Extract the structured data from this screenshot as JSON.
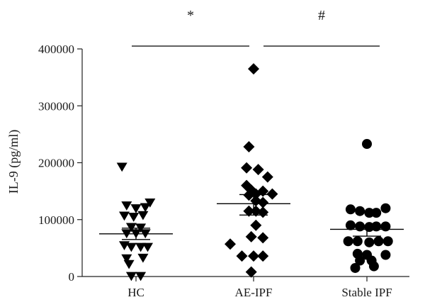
{
  "chart_data": {
    "type": "scatter",
    "ylabel": "IL-9 (pg/ml)",
    "ylim": [
      0,
      400000
    ],
    "yticks": [
      0,
      100000,
      200000,
      300000,
      400000
    ],
    "ytick_labels": [
      "0",
      "100000",
      "200000",
      "300000",
      "400000"
    ],
    "categories": [
      "HC",
      "AE-IPF",
      "Stable IPF"
    ],
    "grid": false,
    "legend": "none",
    "series": [
      {
        "category": "HC",
        "marker": "triangle-down",
        "points": [
          [
            -0.12,
            193000
          ],
          [
            -0.08,
            125000
          ],
          [
            0.0,
            120000
          ],
          [
            0.08,
            122000
          ],
          [
            0.12,
            130000
          ],
          [
            -0.1,
            107000
          ],
          [
            -0.02,
            105000
          ],
          [
            0.06,
            108000
          ],
          [
            -0.04,
            87000
          ],
          [
            0.04,
            86000
          ],
          [
            -0.08,
            76000
          ],
          [
            0.0,
            76000
          ],
          [
            0.08,
            76000
          ],
          [
            -0.1,
            55000
          ],
          [
            -0.04,
            52000
          ],
          [
            0.04,
            52000
          ],
          [
            0.1,
            52000
          ],
          [
            -0.08,
            32000
          ],
          [
            0.06,
            33000
          ],
          [
            -0.06,
            22000
          ],
          [
            -0.04,
            1000
          ],
          [
            0.04,
            1000
          ]
        ],
        "mean": 75000,
        "sem_upper": 85000,
        "sem_lower": 65000
      },
      {
        "category": "AE-IPF",
        "marker": "diamond",
        "points": [
          [
            0.0,
            365000
          ],
          [
            -0.04,
            228000
          ],
          [
            -0.06,
            191000
          ],
          [
            0.04,
            188000
          ],
          [
            0.12,
            175000
          ],
          [
            -0.06,
            160000
          ],
          [
            -0.02,
            152000
          ],
          [
            0.02,
            145000
          ],
          [
            0.08,
            150000
          ],
          [
            0.16,
            145000
          ],
          [
            -0.04,
            143000
          ],
          [
            0.02,
            133000
          ],
          [
            0.08,
            130000
          ],
          [
            -0.04,
            115000
          ],
          [
            0.02,
            115000
          ],
          [
            0.08,
            113000
          ],
          [
            0.02,
            90000
          ],
          [
            -0.02,
            70000
          ],
          [
            0.08,
            68000
          ],
          [
            -0.2,
            57000
          ],
          [
            -0.1,
            36000
          ],
          [
            0.0,
            36000
          ],
          [
            0.08,
            36000
          ],
          [
            -0.02,
            8000
          ]
        ],
        "mean": 128000,
        "sem_upper": 144000,
        "sem_lower": 108000
      },
      {
        "category": "Stable IPF",
        "marker": "circle",
        "points": [
          [
            0.0,
            233000
          ],
          [
            -0.14,
            118000
          ],
          [
            -0.06,
            115000
          ],
          [
            0.02,
            112000
          ],
          [
            0.08,
            112000
          ],
          [
            0.16,
            120000
          ],
          [
            -0.14,
            90000
          ],
          [
            -0.06,
            88000
          ],
          [
            0.02,
            87000
          ],
          [
            0.08,
            88000
          ],
          [
            0.16,
            88000
          ],
          [
            -0.16,
            62000
          ],
          [
            -0.08,
            62000
          ],
          [
            0.02,
            60000
          ],
          [
            0.1,
            62000
          ],
          [
            0.18,
            62000
          ],
          [
            -0.08,
            40000
          ],
          [
            0.0,
            38000
          ],
          [
            0.16,
            38000
          ],
          [
            -0.06,
            28000
          ],
          [
            0.04,
            28000
          ],
          [
            -0.1,
            15000
          ],
          [
            0.06,
            18000
          ]
        ],
        "mean": 83000,
        "sem_upper": 89000,
        "sem_lower": 71000
      }
    ],
    "annotations": [
      {
        "label": "*",
        "from": "HC",
        "to": "AE-IPF"
      },
      {
        "label": "#",
        "from": "AE-IPF",
        "to": "Stable IPF"
      }
    ]
  }
}
